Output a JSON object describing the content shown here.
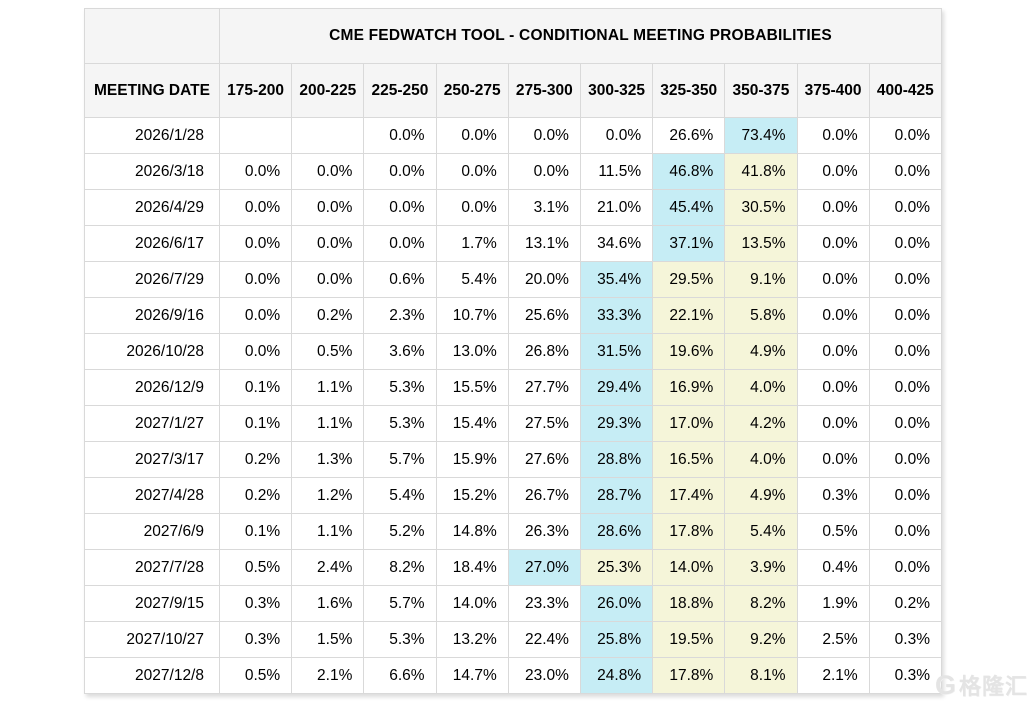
{
  "title": "CME FEDWATCH TOOL - CONDITIONAL MEETING PROBABILITIES",
  "colors": {
    "highlight_cyan": "#c6edf5",
    "highlight_yellow": "#f5f5d9",
    "header_bg": "#f5f5f5",
    "grid_border": "#d9d9d9"
  },
  "watermark": {
    "logo": "G",
    "text": "格隆汇"
  },
  "chart_data": {
    "type": "table",
    "title": "CME FEDWATCH TOOL - CONDITIONAL MEETING PROBABILITIES",
    "date_column_header": "MEETING DATE",
    "rate_range_headers": [
      "175-200",
      "200-225",
      "225-250",
      "250-275",
      "275-300",
      "300-325",
      "325-350",
      "350-375",
      "375-400",
      "400-425"
    ],
    "highlight_key": {
      "c": "cyan highlight",
      "y": "yellow highlight"
    },
    "rows": [
      {
        "date": "2026/1/28",
        "values": [
          "",
          "",
          "0.0%",
          "0.0%",
          "0.0%",
          "0.0%",
          "26.6%",
          "73.4%",
          "0.0%",
          "0.0%"
        ],
        "hl": [
          "",
          "",
          "",
          "",
          "",
          "",
          "",
          "c",
          "",
          ""
        ]
      },
      {
        "date": "2026/3/18",
        "values": [
          "0.0%",
          "0.0%",
          "0.0%",
          "0.0%",
          "0.0%",
          "11.5%",
          "46.8%",
          "41.8%",
          "0.0%",
          "0.0%"
        ],
        "hl": [
          "",
          "",
          "",
          "",
          "",
          "",
          "c",
          "y",
          "",
          ""
        ]
      },
      {
        "date": "2026/4/29",
        "values": [
          "0.0%",
          "0.0%",
          "0.0%",
          "0.0%",
          "3.1%",
          "21.0%",
          "45.4%",
          "30.5%",
          "0.0%",
          "0.0%"
        ],
        "hl": [
          "",
          "",
          "",
          "",
          "",
          "",
          "c",
          "y",
          "",
          ""
        ]
      },
      {
        "date": "2026/6/17",
        "values": [
          "0.0%",
          "0.0%",
          "0.0%",
          "1.7%",
          "13.1%",
          "34.6%",
          "37.1%",
          "13.5%",
          "0.0%",
          "0.0%"
        ],
        "hl": [
          "",
          "",
          "",
          "",
          "",
          "",
          "c",
          "y",
          "",
          ""
        ]
      },
      {
        "date": "2026/7/29",
        "values": [
          "0.0%",
          "0.0%",
          "0.6%",
          "5.4%",
          "20.0%",
          "35.4%",
          "29.5%",
          "9.1%",
          "0.0%",
          "0.0%"
        ],
        "hl": [
          "",
          "",
          "",
          "",
          "",
          "c",
          "y",
          "y",
          "",
          ""
        ]
      },
      {
        "date": "2026/9/16",
        "values": [
          "0.0%",
          "0.2%",
          "2.3%",
          "10.7%",
          "25.6%",
          "33.3%",
          "22.1%",
          "5.8%",
          "0.0%",
          "0.0%"
        ],
        "hl": [
          "",
          "",
          "",
          "",
          "",
          "c",
          "y",
          "y",
          "",
          ""
        ]
      },
      {
        "date": "2026/10/28",
        "values": [
          "0.0%",
          "0.5%",
          "3.6%",
          "13.0%",
          "26.8%",
          "31.5%",
          "19.6%",
          "4.9%",
          "0.0%",
          "0.0%"
        ],
        "hl": [
          "",
          "",
          "",
          "",
          "",
          "c",
          "y",
          "y",
          "",
          ""
        ]
      },
      {
        "date": "2026/12/9",
        "values": [
          "0.1%",
          "1.1%",
          "5.3%",
          "15.5%",
          "27.7%",
          "29.4%",
          "16.9%",
          "4.0%",
          "0.0%",
          "0.0%"
        ],
        "hl": [
          "",
          "",
          "",
          "",
          "",
          "c",
          "y",
          "y",
          "",
          ""
        ]
      },
      {
        "date": "2027/1/27",
        "values": [
          "0.1%",
          "1.1%",
          "5.3%",
          "15.4%",
          "27.5%",
          "29.3%",
          "17.0%",
          "4.2%",
          "0.0%",
          "0.0%"
        ],
        "hl": [
          "",
          "",
          "",
          "",
          "",
          "c",
          "y",
          "y",
          "",
          ""
        ]
      },
      {
        "date": "2027/3/17",
        "values": [
          "0.2%",
          "1.3%",
          "5.7%",
          "15.9%",
          "27.6%",
          "28.8%",
          "16.5%",
          "4.0%",
          "0.0%",
          "0.0%"
        ],
        "hl": [
          "",
          "",
          "",
          "",
          "",
          "c",
          "y",
          "y",
          "",
          ""
        ]
      },
      {
        "date": "2027/4/28",
        "values": [
          "0.2%",
          "1.2%",
          "5.4%",
          "15.2%",
          "26.7%",
          "28.7%",
          "17.4%",
          "4.9%",
          "0.3%",
          "0.0%"
        ],
        "hl": [
          "",
          "",
          "",
          "",
          "",
          "c",
          "y",
          "y",
          "",
          ""
        ]
      },
      {
        "date": "2027/6/9",
        "values": [
          "0.1%",
          "1.1%",
          "5.2%",
          "14.8%",
          "26.3%",
          "28.6%",
          "17.8%",
          "5.4%",
          "0.5%",
          "0.0%"
        ],
        "hl": [
          "",
          "",
          "",
          "",
          "",
          "c",
          "y",
          "y",
          "",
          ""
        ]
      },
      {
        "date": "2027/7/28",
        "values": [
          "0.5%",
          "2.4%",
          "8.2%",
          "18.4%",
          "27.0%",
          "25.3%",
          "14.0%",
          "3.9%",
          "0.4%",
          "0.0%"
        ],
        "hl": [
          "",
          "",
          "",
          "",
          "c",
          "y",
          "y",
          "y",
          "",
          ""
        ]
      },
      {
        "date": "2027/9/15",
        "values": [
          "0.3%",
          "1.6%",
          "5.7%",
          "14.0%",
          "23.3%",
          "26.0%",
          "18.8%",
          "8.2%",
          "1.9%",
          "0.2%"
        ],
        "hl": [
          "",
          "",
          "",
          "",
          "",
          "c",
          "y",
          "y",
          "",
          ""
        ]
      },
      {
        "date": "2027/10/27",
        "values": [
          "0.3%",
          "1.5%",
          "5.3%",
          "13.2%",
          "22.4%",
          "25.8%",
          "19.5%",
          "9.2%",
          "2.5%",
          "0.3%"
        ],
        "hl": [
          "",
          "",
          "",
          "",
          "",
          "c",
          "y",
          "y",
          "",
          ""
        ]
      },
      {
        "date": "2027/12/8",
        "values": [
          "0.5%",
          "2.1%",
          "6.6%",
          "14.7%",
          "23.0%",
          "24.8%",
          "17.8%",
          "8.1%",
          "2.1%",
          "0.3%"
        ],
        "hl": [
          "",
          "",
          "",
          "",
          "",
          "c",
          "y",
          "y",
          "",
          ""
        ]
      }
    ]
  }
}
